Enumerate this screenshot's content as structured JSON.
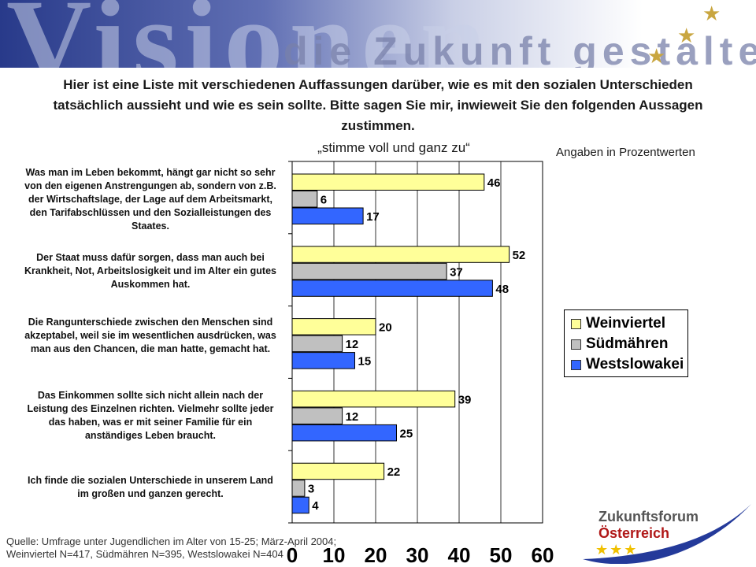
{
  "banner": {
    "word": "Visionen",
    "subline": "die Zukunft gestalten"
  },
  "question": "Hier ist eine Liste mit verschiedenen Auffassungen darüber, wie es mit den sozialen Unterschieden tatsächlich aussieht und wie es sein sollte. Bitte sagen Sie mir, inwieweit Sie den folgenden Aussagen zustimmen.",
  "units_note": "Angaben in  Prozentwerten",
  "source": {
    "line1": "Quelle: Umfrage unter Jugendlichen im Alter von 15-25; März-April 2004;",
    "line2": "Weinviertel N=417, Südmähren N=395, Westslowakei N=404"
  },
  "logo": {
    "line1": "Zukunftsforum",
    "line2": "Österreich"
  },
  "colors": {
    "weinviertel": "#ffff99",
    "suedmaehren": "#c0c0c0",
    "westslowakei": "#3366ff"
  },
  "chart_data": {
    "type": "bar",
    "orientation": "horizontal",
    "subtitle": "„stimme voll und ganz zu“",
    "categories": [
      "Was man im Leben bekommt, hängt gar nicht so sehr von den eigenen Anstrengungen ab, sondern von z.B. der Wirtschaftslage, der Lage auf dem Arbeitsmarkt, den Tarifabschlüssen und den Sozialleistungen des Staates.",
      "Der Staat muss dafür sorgen, dass man auch bei Krankheit, Not, Arbeitslosigkeit und im Alter ein gutes Auskommen hat.",
      "Die Rangunterschiede zwischen den Menschen sind akzeptabel, weil sie im wesentlichen ausdrücken, was man aus den Chancen, die man hatte, gemacht hat.",
      "Das Einkommen sollte sich nicht allein nach der Leistung des Einzelnen richten. Vielmehr sollte jeder das haben, was er mit seiner Familie für ein anständiges Leben braucht.",
      "Ich finde die sozialen Unterschiede in unserem Land im großen und ganzen gerecht."
    ],
    "series": [
      {
        "name": "Weinviertel",
        "color": "#ffff99",
        "values": [
          46,
          52,
          20,
          39,
          22
        ]
      },
      {
        "name": "Südmähren",
        "color": "#c0c0c0",
        "values": [
          6,
          37,
          12,
          12,
          3
        ]
      },
      {
        "name": "Westslowakei",
        "color": "#3366ff",
        "values": [
          17,
          48,
          15,
          25,
          4
        ]
      }
    ],
    "xlim": [
      0,
      60
    ],
    "xticks": [
      "0",
      "10",
      "20",
      "30",
      "40",
      "50",
      "60"
    ],
    "grid": true,
    "legend": "right"
  }
}
